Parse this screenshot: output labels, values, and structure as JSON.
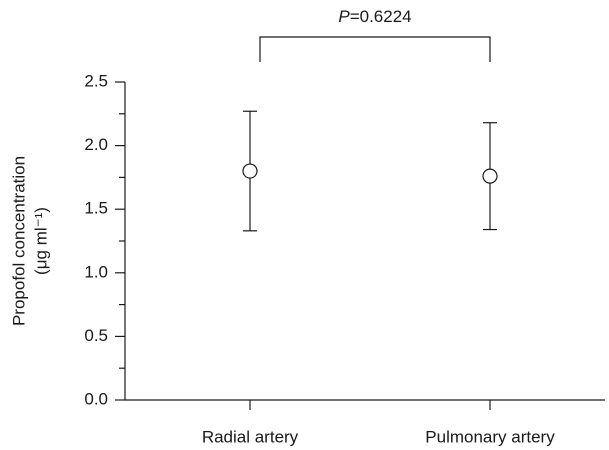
{
  "chart_data": {
    "type": "errorbar",
    "categories": [
      "Radial artery",
      "Pulmonary artery"
    ],
    "values": [
      1.8,
      1.76
    ],
    "errors": [
      0.47,
      0.42
    ],
    "ylabel": [
      "Propofol concentration",
      "(μg ml⁻¹)"
    ],
    "ylim": [
      0,
      2.5
    ],
    "yticks": [
      {
        "value": 0,
        "label": "0.0"
      },
      0.5,
      {
        "value": 1,
        "label": "1.0"
      },
      1.5,
      {
        "value": 2,
        "label": "2.0"
      },
      2.5
    ],
    "yminor_ticks": [
      0.25,
      0.75,
      1.25,
      1.75,
      2.25
    ],
    "annotation": {
      "symbol": "P",
      "text": "=0.6224"
    },
    "marker_fill": "#ffffff",
    "color": "#1a1a1a"
  }
}
